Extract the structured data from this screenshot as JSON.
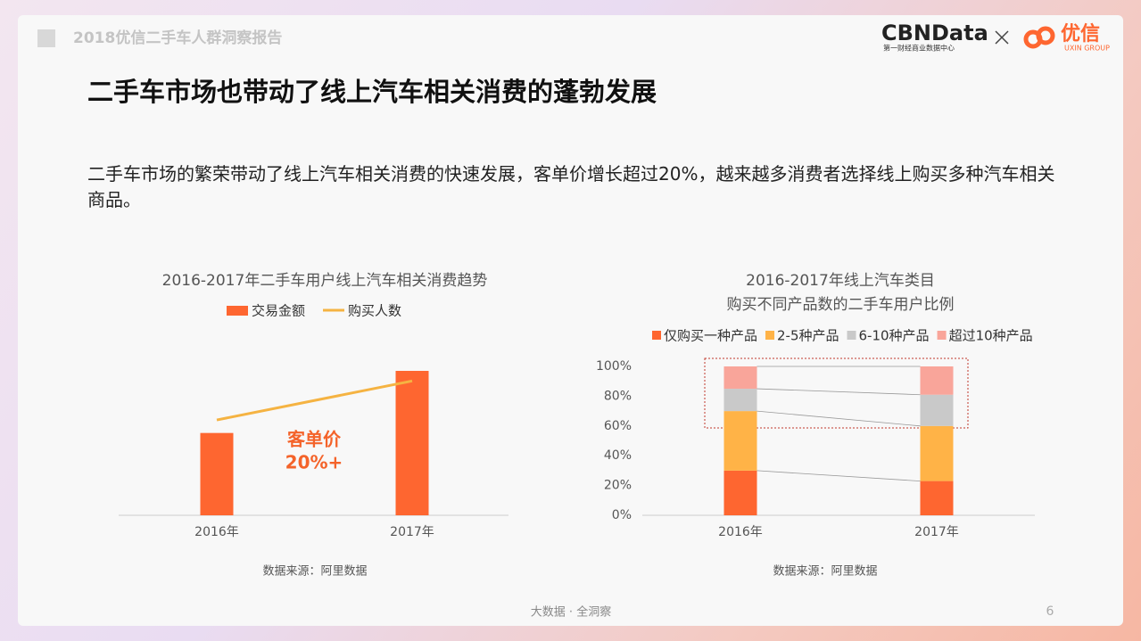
{
  "header": {
    "report_title": "2018优信二手车人群洞察报告",
    "brand": "CBNData",
    "brand_sub": "第一财经商业数据中心",
    "partner": "优信",
    "partner_sub": "UXIN GROUP"
  },
  "slide_title": "二手车市场也带动了线上汽车相关消费的蓬勃发展",
  "body_text": "二手车市场的繁荣带动了线上汽车相关消费的快速发展，客单价增长超过20%，越来越多消费者选择线上购买多种汽车相关商品。",
  "chart_data": [
    {
      "type": "bar",
      "title": "2016-2017年二手车用户线上汽车相关消费趋势",
      "categories": [
        "2016年",
        "2017年"
      ],
      "series": [
        {
          "name": "交易金额",
          "type": "bar",
          "color": "#fe6630",
          "values": [
            57,
            100
          ]
        },
        {
          "name": "购买人数",
          "type": "line",
          "color": "#f5b342",
          "values": [
            66,
            93
          ]
        }
      ],
      "annotation": [
        "客单价",
        "20%+"
      ],
      "source": "数据来源：阿里数据"
    },
    {
      "type": "stacked_bar",
      "title": "2016-2017年线上汽车类目",
      "subtitle": "购买不同产品数的二手车用户比例",
      "categories": [
        "2016年",
        "2017年"
      ],
      "series": [
        {
          "name": "仅购买一种产品",
          "color": "#fe6630",
          "values": [
            30,
            23
          ]
        },
        {
          "name": "2-5种产品",
          "color": "#ffb347",
          "values": [
            40,
            37
          ]
        },
        {
          "name": "6-10种产品",
          "color": "#c9c9c9",
          "values": [
            15,
            21
          ]
        },
        {
          "name": "超过10种产品",
          "color": "#f9a59a",
          "values": [
            15,
            19
          ]
        }
      ],
      "ylim": [
        0,
        100
      ],
      "yticks": [
        {
          "value": 0,
          "label": "0%"
        },
        {
          "value": 20,
          "label": "20%"
        },
        {
          "value": 40,
          "label": "40%"
        },
        {
          "value": 60,
          "label": "60%"
        },
        {
          "value": 80,
          "label": "80%"
        },
        {
          "value": 100,
          "label": "100%"
        }
      ],
      "source": "数据来源：阿里数据"
    }
  ],
  "footer": {
    "tagline": "大数据 · 全洞察",
    "page": 6
  }
}
